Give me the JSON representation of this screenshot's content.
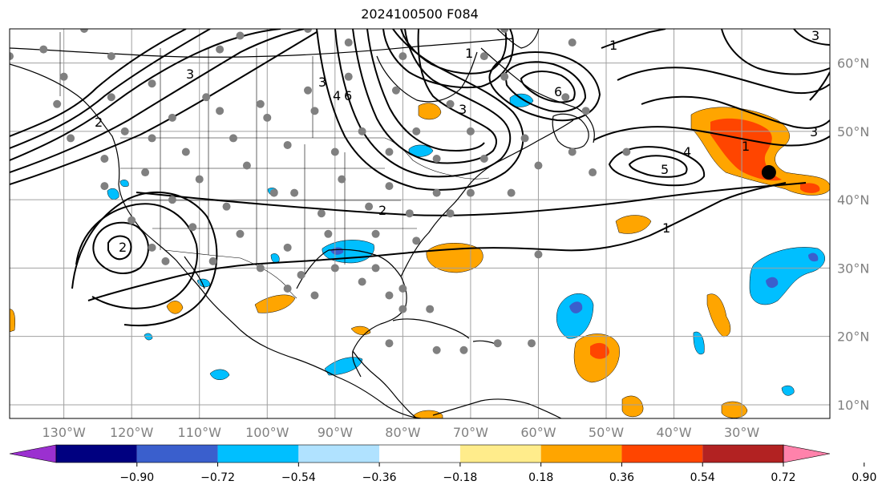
{
  "title": "2024100500 F084",
  "map": {
    "projection": "plate-carree",
    "lon_range_deg": [
      -138,
      -17
    ],
    "lat_range_deg": [
      8,
      65
    ],
    "gridlines": true,
    "lon_ticks": [
      {
        "value": -130,
        "label": "130°W"
      },
      {
        "value": -120,
        "label": "120°W"
      },
      {
        "value": -110,
        "label": "110°W"
      },
      {
        "value": -100,
        "label": "100°W"
      },
      {
        "value": -90,
        "label": "90°W"
      },
      {
        "value": -80,
        "label": "80°W"
      },
      {
        "value": -70,
        "label": "70°W"
      },
      {
        "value": -60,
        "label": "60°W"
      },
      {
        "value": -50,
        "label": "50°W"
      },
      {
        "value": -40,
        "label": "40°W"
      },
      {
        "value": -30,
        "label": "30°W"
      }
    ],
    "lat_ticks": [
      {
        "value": 60,
        "label": "60°N"
      },
      {
        "value": 50,
        "label": "50°N"
      },
      {
        "value": 40,
        "label": "40°N"
      },
      {
        "value": 30,
        "label": "30°N"
      },
      {
        "value": 20,
        "label": "20°N"
      },
      {
        "value": 10,
        "label": "10°N"
      }
    ],
    "contour_labels": [
      "1",
      "2",
      "3",
      "4",
      "5",
      "6"
    ],
    "marker": {
      "lon": -26,
      "lat": 44,
      "color": "#000000"
    },
    "station_dot_color": "#808080"
  },
  "colorbar": {
    "colors": [
      "#9b30d0",
      "#000080",
      "#3a5fcd",
      "#00bfff",
      "#b0e2ff",
      "#ffffff",
      "#ffec8b",
      "#ffa500",
      "#ff4500",
      "#b22222",
      "#ff82ab"
    ],
    "tick_labels": [
      "−0.90",
      "−0.72",
      "−0.54",
      "−0.36",
      "−0.18",
      "0.18",
      "0.36",
      "0.54",
      "0.72",
      "0.90"
    ],
    "extend": "both"
  }
}
